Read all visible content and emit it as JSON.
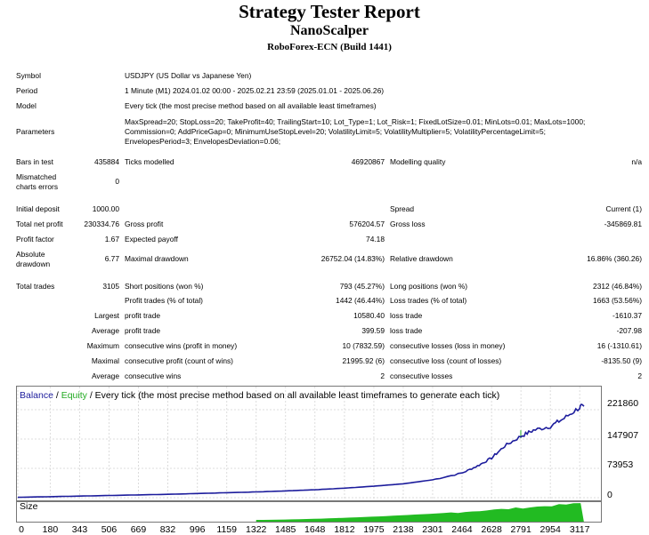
{
  "header": {
    "title": "Strategy Tester Report",
    "expert": "NanoScalper",
    "server": "RoboForex-ECN (Build 1441)"
  },
  "info": {
    "symbol_label": "Symbol",
    "symbol_value": "USDJPY (US Dollar vs Japanese Yen)",
    "period_label": "Period",
    "period_value": "1 Minute (M1) 2024.01.02 00:00 - 2025.02.21 23:59 (2025.01.01 - 2025.06.26)",
    "model_label": "Model",
    "model_value": "Every tick (the most precise method based on all available least timeframes)",
    "parameters_label": "Parameters",
    "parameters_lines": [
      "MaxSpread=20; StopLoss=20; TakeProfit=40; TrailingStart=10; Lot_Type=1; Lot_Risk=1; FixedLotSize=0.01; MinLots=0.01; MaxLots=1000;",
      "Commission=0; AddPriceGap=0; MinimumUseStopLevel=20; VolatilityLimit=5; VolatilityMultiplier=5; VolatilityPercentageLimit=5;",
      "EnvelopesPeriod=3; EnvelopesDeviation=0.06;"
    ]
  },
  "stats": {
    "bars_label": "Bars in test",
    "bars_value": "435884",
    "ticks_label": "Ticks modelled",
    "ticks_value": "46920867",
    "quality_label": "Modelling quality",
    "quality_value": "n/a",
    "mismatch_label_1": "Mismatched",
    "mismatch_label_2": "charts errors",
    "mismatch_value": "0",
    "initial_label": "Initial deposit",
    "initial_value": "1000.00",
    "spread_label": "Spread",
    "spread_value": "Current (1)",
    "netprofit_label": "Total net profit",
    "netprofit_value": "230334.76",
    "grossprofit_label": "Gross profit",
    "grossprofit_value": "576204.57",
    "grossloss_label": "Gross loss",
    "grossloss_value": "-345869.81",
    "pf_label": "Profit factor",
    "pf_value": "1.67",
    "payoff_label": "Expected payoff",
    "payoff_value": "74.18",
    "absdd_label_1": "Absolute",
    "absdd_label_2": "drawdown",
    "absdd_value": "6.77",
    "maxdd_label": "Maximal drawdown",
    "maxdd_value": "26752.04 (14.83%)",
    "reldd_label": "Relative drawdown",
    "reldd_value": "16.86% (360.26)",
    "trades_label": "Total trades",
    "trades_value": "3105",
    "short_label": "Short positions (won %)",
    "short_value": "793 (45.27%)",
    "long_label": "Long positions (won %)",
    "long_value": "2312 (46.84%)",
    "ptrades_label": "Profit trades (% of total)",
    "ptrades_value": "1442 (46.44%)",
    "ltrades_label": "Loss trades (% of total)",
    "ltrades_value": "1663 (53.56%)",
    "largest_label": "Largest",
    "largest_profit_label": "profit trade",
    "largest_profit_value": "10580.40",
    "largest_loss_label": "loss trade",
    "largest_loss_value": "-1610.37",
    "average_label": "Average",
    "average_profit_label": "profit trade",
    "average_profit_value": "399.59",
    "average_loss_label": "loss trade",
    "average_loss_value": "-207.98",
    "maximum_label": "Maximum",
    "maxwins_label": "consecutive wins (profit in money)",
    "maxwins_value": "10 (7832.59)",
    "maxlosses_label": "consecutive losses (loss in money)",
    "maxlosses_value": "16 (-1310.61)",
    "maximal_label": "Maximal",
    "maxcprofit_label": "consecutive profit (count of wins)",
    "maxcprofit_value": "21995.92 (6)",
    "maxcloss_label": "consecutive loss (count of losses)",
    "maxcloss_value": "-8135.50 (9)",
    "avgcons_label": "Average",
    "avgwins_label": "consecutive wins",
    "avgwins_value": "2",
    "avglosses_label": "consecutive losses",
    "avglosses_value": "2"
  },
  "graph": {
    "legend_balance": "Balance",
    "legend_sep1": " / ",
    "legend_equity": "Equity",
    "legend_rest": " / Every tick (the most precise method based on all available least timeframes to generate each tick)",
    "size_label": "Size",
    "y_ticks": [
      "221860",
      "147907",
      "73953",
      "0"
    ],
    "x_ticks": [
      "0",
      "180",
      "343",
      "506",
      "669",
      "832",
      "996",
      "1159",
      "1322",
      "1485",
      "1648",
      "1812",
      "1975",
      "2138",
      "2301",
      "2464",
      "2628",
      "2791",
      "2954",
      "3117"
    ],
    "colors": {
      "balance": "#1c1c9c",
      "equity": "#22aa22",
      "size": "#22bb22",
      "grid": "#dcdcdc"
    }
  },
  "chart_data": {
    "type": "line",
    "x": [
      0,
      180,
      343,
      506,
      669,
      832,
      996,
      1159,
      1322,
      1485,
      1648,
      1812,
      1975,
      2138,
      2301,
      2464,
      2550,
      2628,
      2700,
      2791,
      2860,
      2954,
      3030,
      3117,
      3140
    ],
    "series": [
      {
        "name": "Balance",
        "values": [
          1000,
          2500,
          4000,
          5500,
          7000,
          8500,
          10500,
          12500,
          14500,
          17000,
          20000,
          24000,
          29000,
          35000,
          45000,
          62000,
          80000,
          100000,
          130000,
          155000,
          170000,
          180000,
          200000,
          228000,
          230334
        ]
      }
    ],
    "ylim": [
      0,
      260000
    ],
    "xlim": [
      0,
      3200
    ]
  }
}
